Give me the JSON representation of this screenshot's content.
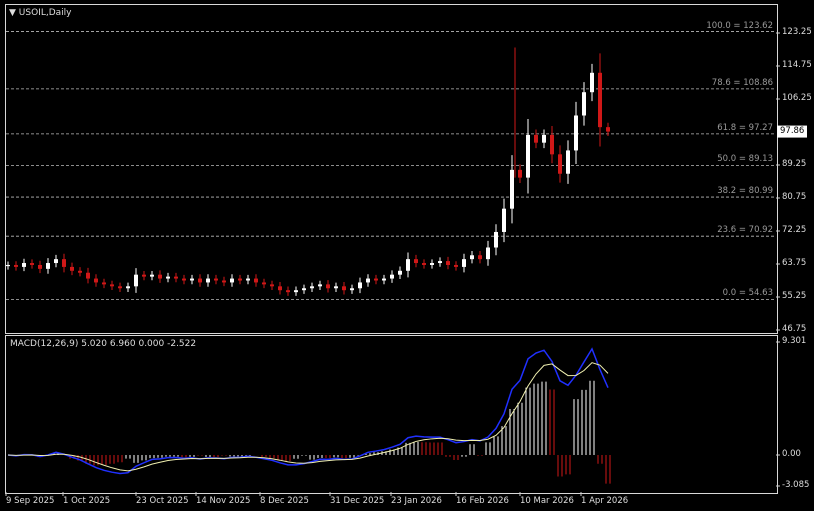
{
  "chart_data": {
    "type": "candlestick",
    "title": "USOIL,Daily",
    "x_tick_labels": [
      "9 Sep 2025",
      "1 Oct 2025",
      "23 Oct 2025",
      "14 Nov 2025",
      "8 Dec 2025",
      "31 Dec 2025",
      "23 Jan 2026",
      "16 Feb 2026",
      "10 Mar 2026",
      "1 Apr 2026"
    ],
    "y_tick_labels": [
      "123.25",
      "114.75",
      "106.25",
      "89.25",
      "80.75",
      "72.25",
      "63.75",
      "55.25",
      "46.75"
    ],
    "ylim": [
      46.75,
      126
    ],
    "current_price": "97.86",
    "closes": [
      63.5,
      63,
      64,
      63.5,
      62.5,
      64,
      65,
      63,
      62,
      61.5,
      60,
      59,
      58.5,
      58,
      57.5,
      58,
      61,
      60.5,
      61,
      60,
      60.5,
      60,
      59.5,
      60,
      59,
      60,
      59.5,
      59,
      60,
      59.5,
      60,
      59,
      58.5,
      58,
      57,
      56.5,
      57,
      57.5,
      58,
      58.5,
      57.5,
      58,
      57,
      57.5,
      59,
      60,
      59.5,
      60,
      61,
      62,
      65,
      64,
      63.5,
      64,
      64.5,
      63.5,
      63,
      65,
      66,
      65,
      68,
      72,
      78,
      88,
      86,
      97,
      95,
      97,
      92,
      87,
      93,
      102,
      108,
      113,
      99,
      97.86
    ],
    "fibonacci": [
      {
        "label": "100.0 = 123.62",
        "price": 123.62
      },
      {
        "label": "78.6 = 108.86",
        "price": 108.86
      },
      {
        "label": "61.8 = 97.27",
        "price": 97.27
      },
      {
        "label": "50.0 = 89.13",
        "price": 89.13
      },
      {
        "label": "38.2 = 80.99",
        "price": 80.99
      },
      {
        "label": "23.6 = 70.92",
        "price": 70.92
      },
      {
        "label": "0.0 = 54.63",
        "price": 54.63
      }
    ],
    "macd": {
      "label": "MACD(12,26,9) 5.020 6.960 0.000 -2.522",
      "y_tick_labels": [
        "9.301",
        "0.00",
        "-3.085"
      ],
      "ylim": [
        -3.085,
        9.301
      ],
      "main_color": "#2030ff",
      "signal_color": "#f0f0b0"
    },
    "colors": {
      "bull": "#ffffff",
      "bear": "#d01818",
      "grid": "#c8c8c8",
      "background": "#000000"
    }
  }
}
